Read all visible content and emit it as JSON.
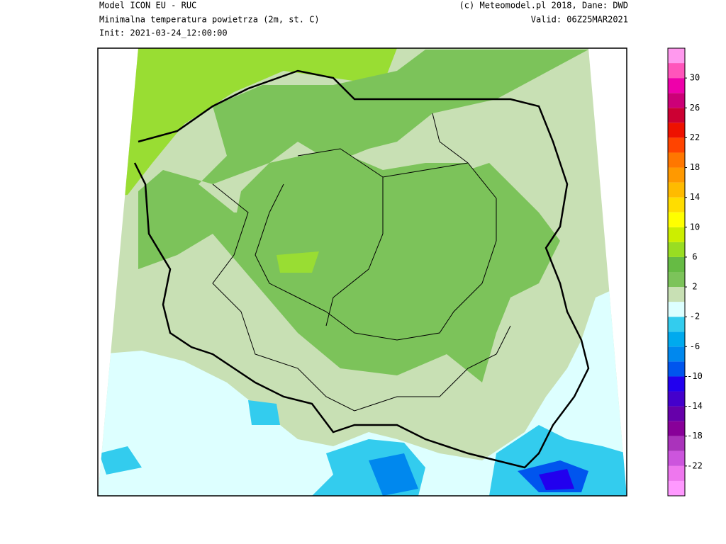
{
  "header": {
    "left": [
      "Model ICON EU - RUC",
      "Minimalna temperatura powietrza (2m, st. C)",
      "Init: 2021-03-24_12:00:00"
    ],
    "right": [
      "(c) Meteomodel.pl 2018, Dane: DWD",
      "Valid: 06Z25MAR2021"
    ]
  },
  "colorbar": {
    "range": [
      -26,
      34
    ],
    "ticks": [
      30,
      26,
      22,
      18,
      14,
      10,
      6,
      2,
      -2,
      -6,
      -10,
      -14,
      -18,
      -22
    ],
    "colors": [
      "#ff99ff",
      "#ee77ee",
      "#cc55dd",
      "#aa33bb",
      "#880099",
      "#6600aa",
      "#4400cc",
      "#2200ee",
      "#0055ee",
      "#0088ee",
      "#00aaee",
      "#33ccee",
      "#ddffff",
      "#c8e0b4",
      "#7cc35a",
      "#66bb44",
      "#99dd22",
      "#ccee00",
      "#ffff00",
      "#ffdd00",
      "#ffbb00",
      "#ff9900",
      "#ff7700",
      "#ff4400",
      "#ee1100",
      "#cc0033",
      "#cc0077",
      "#ee00aa",
      "#ff55bb",
      "#ff99ee"
    ]
  }
}
